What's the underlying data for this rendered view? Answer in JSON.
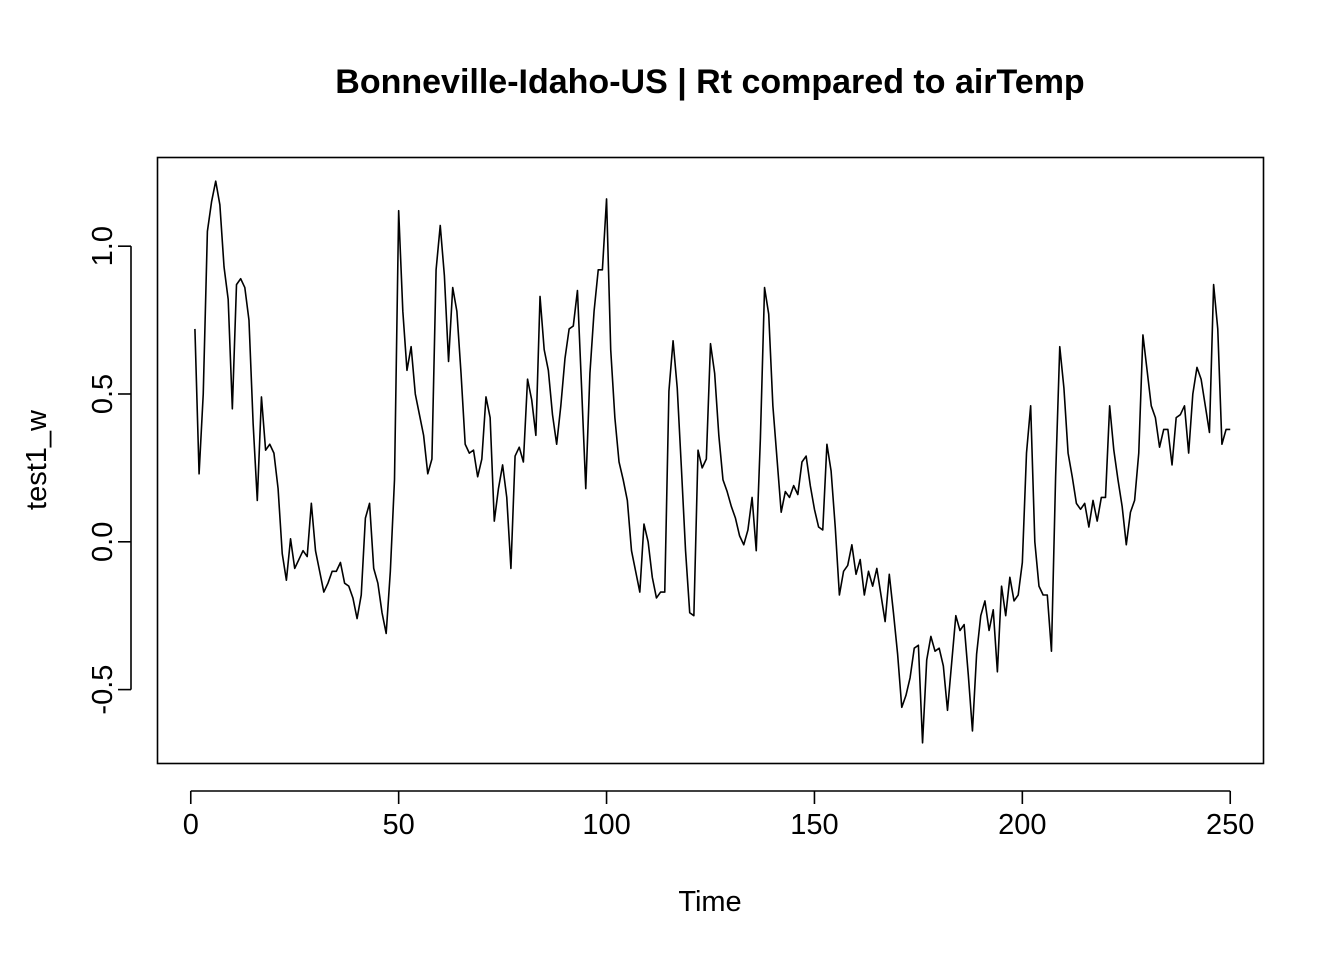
{
  "chart_data": {
    "type": "line",
    "title": "Bonneville-Idaho-US | Rt compared to airTemp",
    "xlabel": "Time",
    "ylabel": "test1_w",
    "xlim": [
      -8,
      258
    ],
    "ylim": [
      -0.75,
      1.3
    ],
    "x_ticks": [
      0,
      50,
      100,
      150,
      200,
      250
    ],
    "y_ticks": [
      -0.5,
      0.0,
      0.5,
      1.0
    ],
    "x_tick_labels": [
      "0",
      "50",
      "100",
      "150",
      "200",
      "250"
    ],
    "y_tick_labels": [
      "-0.5",
      "0.0",
      "0.5",
      "1.0"
    ],
    "grid": false,
    "series": [
      {
        "color": "#000000",
        "x_start": 1,
        "values": [
          0.72,
          0.23,
          0.5,
          1.05,
          1.15,
          1.22,
          1.14,
          0.93,
          0.82,
          0.45,
          0.87,
          0.89,
          0.86,
          0.75,
          0.4,
          0.14,
          0.49,
          0.31,
          0.33,
          0.3,
          0.18,
          -0.04,
          -0.13,
          0.01,
          -0.09,
          -0.06,
          -0.03,
          -0.05,
          0.13,
          -0.03,
          -0.1,
          -0.17,
          -0.14,
          -0.1,
          -0.1,
          -0.07,
          -0.14,
          -0.15,
          -0.19,
          -0.26,
          -0.18,
          0.08,
          0.13,
          -0.09,
          -0.14,
          -0.24,
          -0.31,
          -0.1,
          0.21,
          1.12,
          0.78,
          0.58,
          0.66,
          0.5,
          0.43,
          0.36,
          0.23,
          0.28,
          0.92,
          1.07,
          0.9,
          0.61,
          0.86,
          0.78,
          0.57,
          0.33,
          0.3,
          0.31,
          0.22,
          0.28,
          0.49,
          0.42,
          0.07,
          0.18,
          0.26,
          0.15,
          -0.09,
          0.29,
          0.32,
          0.27,
          0.55,
          0.48,
          0.36,
          0.83,
          0.65,
          0.58,
          0.43,
          0.33,
          0.46,
          0.62,
          0.72,
          0.73,
          0.85,
          0.52,
          0.18,
          0.57,
          0.78,
          0.92,
          0.92,
          1.16,
          0.65,
          0.42,
          0.27,
          0.21,
          0.14,
          -0.03,
          -0.1,
          -0.17,
          0.06,
          0.0,
          -0.12,
          -0.19,
          -0.17,
          -0.17,
          0.51,
          0.68,
          0.52,
          0.25,
          -0.03,
          -0.24,
          -0.25,
          0.31,
          0.25,
          0.28,
          0.67,
          0.57,
          0.36,
          0.21,
          0.17,
          0.12,
          0.08,
          0.02,
          -0.01,
          0.04,
          0.15,
          -0.03,
          0.35,
          0.86,
          0.77,
          0.46,
          0.28,
          0.1,
          0.17,
          0.15,
          0.19,
          0.16,
          0.27,
          0.29,
          0.19,
          0.11,
          0.05,
          0.04,
          0.33,
          0.24,
          0.05,
          -0.18,
          -0.1,
          -0.08,
          -0.01,
          -0.11,
          -0.06,
          -0.18,
          -0.1,
          -0.15,
          -0.09,
          -0.18,
          -0.27,
          -0.11,
          -0.24,
          -0.38,
          -0.56,
          -0.52,
          -0.46,
          -0.36,
          -0.35,
          -0.68,
          -0.4,
          -0.32,
          -0.37,
          -0.36,
          -0.42,
          -0.57,
          -0.41,
          -0.25,
          -0.3,
          -0.28,
          -0.45,
          -0.64,
          -0.38,
          -0.25,
          -0.2,
          -0.3,
          -0.23,
          -0.44,
          -0.15,
          -0.25,
          -0.12,
          -0.2,
          -0.18,
          -0.07,
          0.3,
          0.46,
          0.0,
          -0.15,
          -0.18,
          -0.18,
          -0.37,
          0.22,
          0.66,
          0.52,
          0.3,
          0.22,
          0.13,
          0.11,
          0.13,
          0.05,
          0.14,
          0.07,
          0.15,
          0.15,
          0.46,
          0.31,
          0.21,
          0.12,
          -0.01,
          0.1,
          0.14,
          0.3,
          0.7,
          0.58,
          0.46,
          0.42,
          0.32,
          0.38,
          0.38,
          0.26,
          0.42,
          0.43,
          0.46,
          0.3,
          0.5,
          0.59,
          0.55,
          0.46,
          0.37,
          0.87,
          0.72,
          0.33,
          0.38,
          0.38
        ]
      }
    ]
  }
}
